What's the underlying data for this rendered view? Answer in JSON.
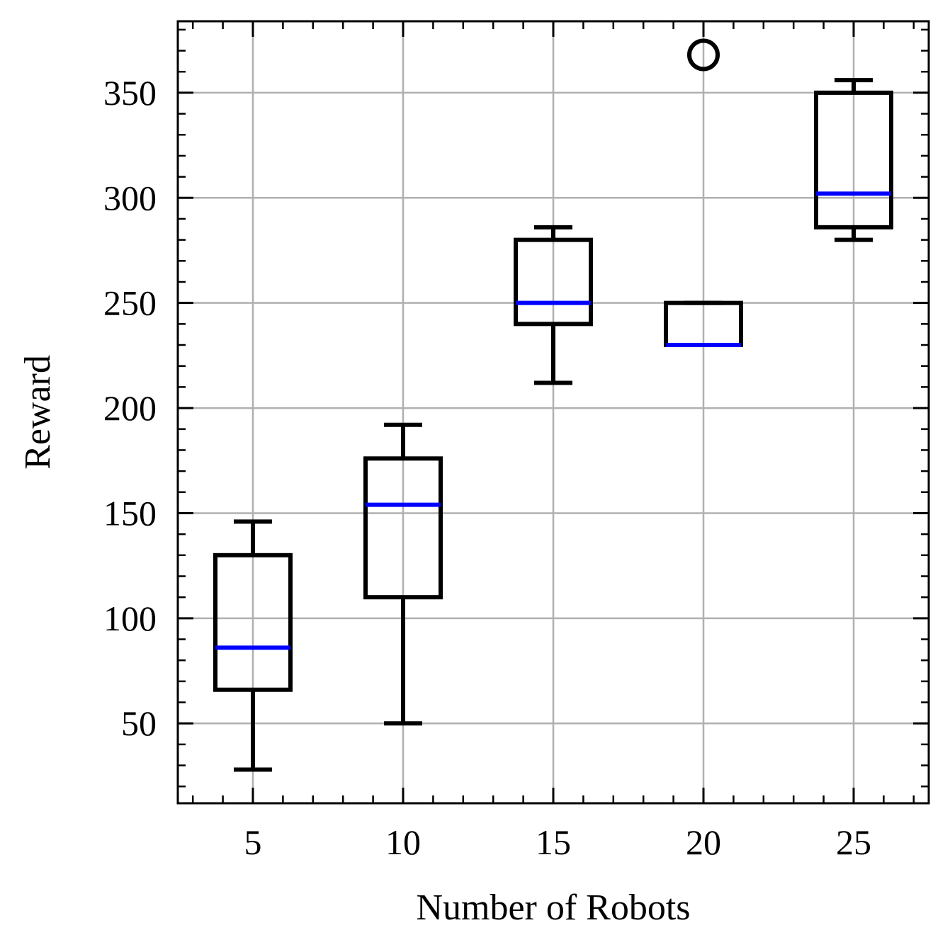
{
  "chart_data": {
    "type": "box",
    "xlabel": "Number of Robots",
    "ylabel": "Reward",
    "xlim": [
      2.5,
      27.5
    ],
    "ylim": [
      12,
      384
    ],
    "xticks": [
      5,
      10,
      15,
      20,
      25
    ],
    "yticks": [
      50,
      100,
      150,
      200,
      250,
      300,
      350
    ],
    "grid": true,
    "median_color": "#0000ff",
    "box_color": "#000000",
    "grid_color": "#b0b0b0",
    "boxes": [
      {
        "x": 5,
        "whisker_low": 28,
        "q1": 66,
        "median": 86,
        "q3": 130,
        "whisker_high": 146,
        "outliers": []
      },
      {
        "x": 10,
        "whisker_low": 50,
        "q1": 110,
        "median": 154,
        "q3": 176,
        "whisker_high": 192,
        "outliers": []
      },
      {
        "x": 15,
        "whisker_low": 212,
        "q1": 240,
        "median": 250,
        "q3": 280,
        "whisker_high": 286,
        "outliers": []
      },
      {
        "x": 20,
        "whisker_low": 230,
        "q1": 230,
        "median": 230,
        "q3": 250,
        "whisker_high": 250,
        "outliers": [
          368
        ]
      },
      {
        "x": 25,
        "whisker_low": 280,
        "q1": 286,
        "median": 302,
        "q3": 350,
        "whisker_high": 356,
        "outliers": []
      }
    ]
  }
}
